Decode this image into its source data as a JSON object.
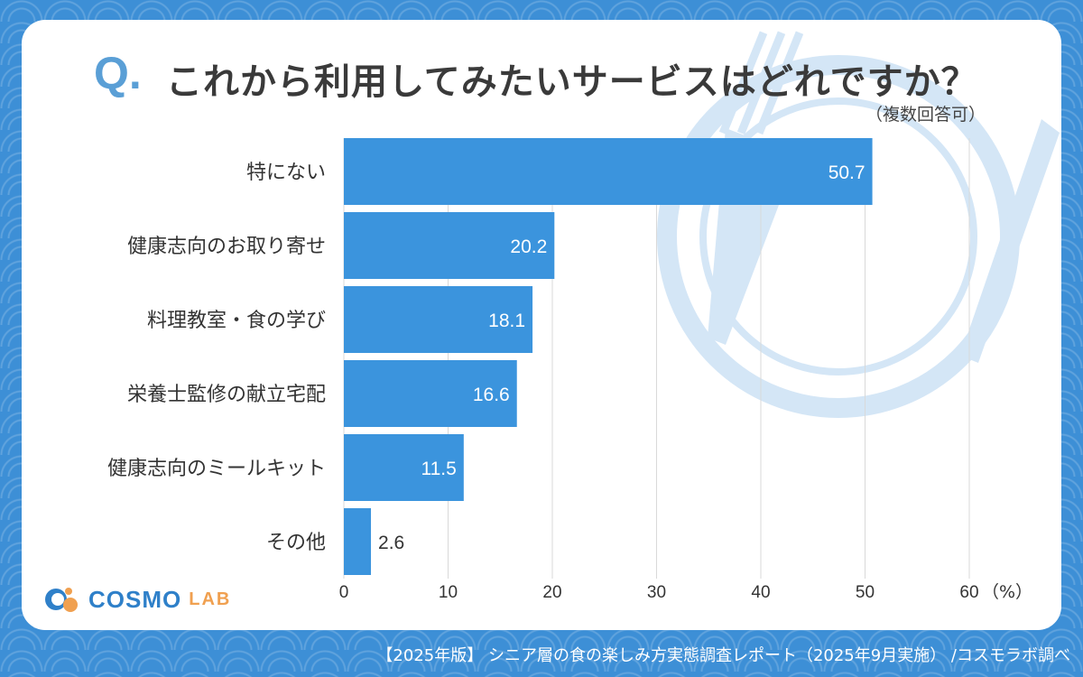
{
  "title": "Q. これから利用してみたいサービスはどれですか？",
  "title_q": "Q.",
  "title_text": "これから利用してみたいサービスはどれですか？",
  "subtitle": "（複数回答可）",
  "brand": {
    "name": "COSMO",
    "sub": "LAB"
  },
  "footer": "【2025年版】 シニア層の食の楽しみ方実態調査レポート（2025年9月実施） /コスモラボ調べ",
  "colors": {
    "bar": "#3b94dd",
    "background": "#3d8fd6",
    "grid": "#d9d9d9",
    "decoration": "#d4e6f6"
  },
  "chart_data": {
    "type": "bar",
    "orientation": "horizontal",
    "categories": [
      "特にない",
      "健康志向のお取り寄せ",
      "料理教室・食の学び",
      "栄養士監修の献立宅配",
      "健康志向のミールキット",
      "その他"
    ],
    "values": [
      50.7,
      20.2,
      18.1,
      16.6,
      11.5,
      2.6
    ],
    "value_labels": [
      "50.7",
      "20.2",
      "18.1",
      "16.6",
      "11.5",
      "2.6"
    ],
    "xlim": [
      0,
      60
    ],
    "xticks": [
      0,
      10,
      20,
      30,
      40,
      50,
      60
    ],
    "xtick_labels": [
      "0",
      "10",
      "20",
      "30",
      "40",
      "50",
      "60"
    ],
    "unit": "（%）",
    "grid": true
  }
}
